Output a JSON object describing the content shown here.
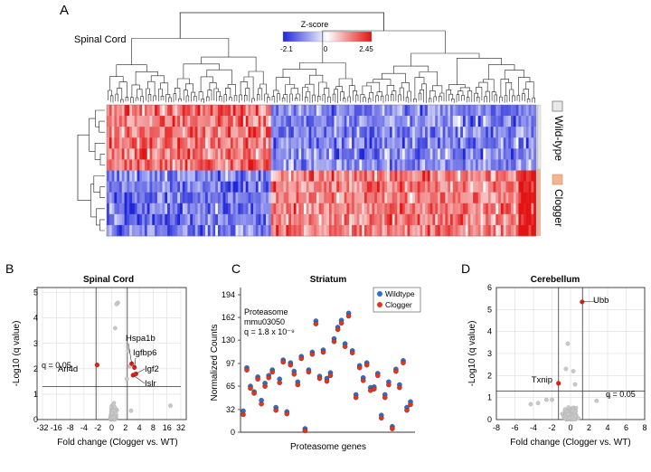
{
  "panel_a": {
    "letter": "A",
    "tissue_label": "Spinal Cord",
    "zscore": {
      "title": "Z-score",
      "min_label": "-2.1",
      "mid_label": "0",
      "max_label": "2.45"
    },
    "groups": [
      {
        "label": "Wild-type",
        "color": "#e9e9e9",
        "rows": 6
      },
      {
        "label": "Clogger",
        "color": "#f1b58f",
        "rows": 6
      }
    ],
    "n_genes": 170,
    "colors": {
      "low": "#1f25d9",
      "mid": "#ffffff",
      "high": "#e31313"
    }
  },
  "chart_data": [
    {
      "panel": "B",
      "type": "scatter",
      "title": "Spinal Cord",
      "xlabel": "Fold change (Clogger vs. WT)",
      "ylabel": "-Log10 (q value)",
      "x_ticks": [
        "-32",
        "-16",
        "-8",
        "-4",
        "-2",
        "0",
        "2",
        "4",
        "8",
        "16",
        "32"
      ],
      "y_ticks": [
        "0",
        "1",
        "2",
        "3",
        "4",
        "5"
      ],
      "ylim": [
        0,
        5
      ],
      "threshold_label": "q = 0.05",
      "threshold_y": 1.3,
      "highlighted": [
        {
          "label": "Arl4d",
          "x": -2.1,
          "y": 2.15
        },
        {
          "label": "Hspa1b",
          "x": 2.9,
          "y": 2.2
        },
        {
          "label": "Igfbp6",
          "x": 3.3,
          "y": 2.05
        },
        {
          "label": "Igf2",
          "x": 3.5,
          "y": 1.8
        },
        {
          "label": "Islr",
          "x": 3.1,
          "y": 1.75
        }
      ],
      "outliers": [
        {
          "x": 0.9,
          "y": 4.6
        },
        {
          "x": 0.7,
          "y": 4.55
        },
        {
          "x": 0.5,
          "y": 3.6
        },
        {
          "x": 2.4,
          "y": 2.7
        },
        {
          "x": 2.6,
          "y": 2.1
        },
        {
          "x": 2.2,
          "y": 1.6
        },
        {
          "x": 2.8,
          "y": 0.35
        },
        {
          "x": 20,
          "y": 0.55
        }
      ]
    },
    {
      "panel": "C",
      "type": "scatter",
      "title": "Striatum",
      "xlabel": "Proteasome genes",
      "ylabel": "Normalized Counts",
      "ylim": [
        0,
        194
      ],
      "y_ticks": [
        "0",
        "32",
        "65",
        "97",
        "130",
        "162",
        "194"
      ],
      "annotation": [
        "Proteasome",
        "mmu03050",
        "q = 1.8 x 10⁻⁹"
      ],
      "series": [
        {
          "name": "Wildtype",
          "color": "#2a6fd8",
          "values": [
            30,
            91,
            65,
            57,
            78,
            45,
            69,
            80,
            88,
            35,
            75,
            102,
            29,
            98,
            86,
            71,
            107,
            5,
            88,
            113,
            157,
            79,
            116,
            76,
            84,
            132,
            148,
            158,
            125,
            168,
            115,
            53,
            94,
            77,
            98,
            63,
            64,
            83,
            24,
            53,
            71,
            8,
            89,
            67,
            101,
            35,
            43
          ]
        },
        {
          "name": "Clogger",
          "color": "#e5341c",
          "values": [
            25,
            88,
            62,
            55,
            75,
            40,
            65,
            77,
            85,
            31,
            70,
            99,
            26,
            95,
            82,
            67,
            104,
            2,
            85,
            110,
            153,
            76,
            113,
            72,
            80,
            128,
            145,
            154,
            121,
            164,
            112,
            49,
            91,
            73,
            95,
            59,
            61,
            80,
            20,
            49,
            67,
            5,
            86,
            63,
            98,
            31,
            39
          ]
        }
      ]
    },
    {
      "panel": "D",
      "type": "scatter",
      "title": "Cerebellum",
      "xlabel": "Fold change (Clogger vs. WT)",
      "ylabel": "-Log10 (q value)",
      "x_ticks": [
        "-8",
        "-6",
        "-4",
        "-2",
        "0",
        "2",
        "4",
        "6",
        "8"
      ],
      "y_ticks": [
        "0",
        "1",
        "2",
        "3",
        "4",
        "5",
        "6"
      ],
      "xlim": [
        -8,
        8
      ],
      "ylim": [
        0,
        6
      ],
      "threshold_label": "q = 0.05",
      "threshold_y": 1.3,
      "highlighted": [
        {
          "label": "Ubb",
          "x": 1.25,
          "y": 5.35
        },
        {
          "label": "Txnip",
          "x": -1.3,
          "y": 1.65
        }
      ],
      "outliers": [
        {
          "x": -0.3,
          "y": 3.45
        },
        {
          "x": -0.5,
          "y": 2.3
        },
        {
          "x": 0.3,
          "y": 2.2
        },
        {
          "x": 0.5,
          "y": 1.6
        },
        {
          "x": -3.5,
          "y": 0.75
        },
        {
          "x": -4.3,
          "y": 0.7
        },
        {
          "x": -2.6,
          "y": 0.9
        },
        {
          "x": 2.8,
          "y": 0.85
        },
        {
          "x": 4.1,
          "y": 1.05
        },
        {
          "x": -2.0,
          "y": 0.9
        }
      ]
    }
  ],
  "panel_letters": {
    "b": "B",
    "c": "C",
    "d": "D"
  }
}
